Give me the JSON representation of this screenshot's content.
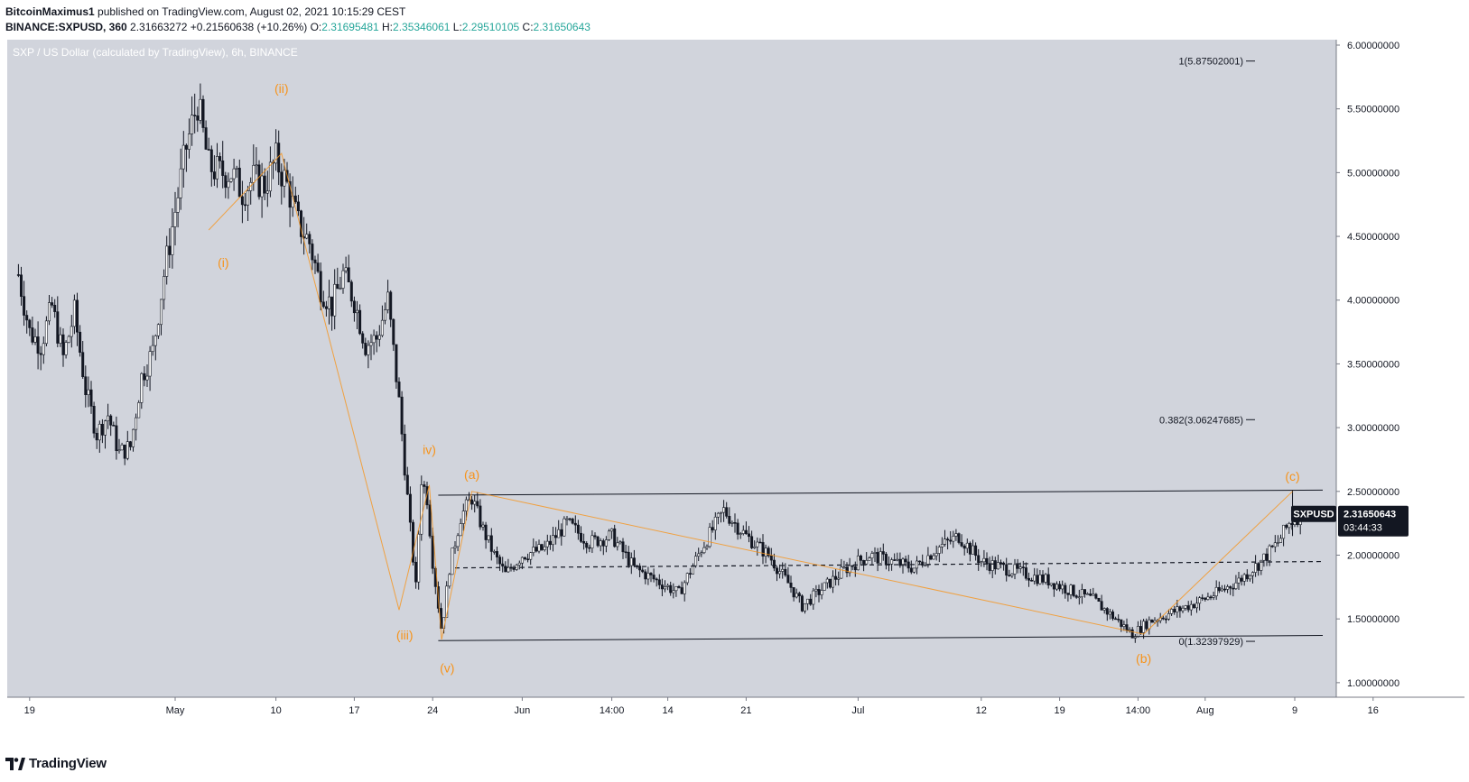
{
  "header": {
    "author": "BitcoinMaximus1",
    "published": "published on TradingView.com, August 02, 2021 10:15:29 CEST",
    "symbol": "BINANCE:SXPUSD, 360",
    "last": "2.31663272",
    "change": "+0.21560638 (+10.26%)",
    "o_label": "O:",
    "o_value": "2.31695481",
    "h_label": "H:",
    "h_value": "2.35346061",
    "l_label": "L:",
    "l_value": "2.29510105",
    "c_label": "C:",
    "c_value": "2.31650643"
  },
  "footer": {
    "brand": "TradingView"
  },
  "colors": {
    "background": "#d1d4dc",
    "wave": "#f7931a",
    "candle": "#131722",
    "channel": "#131722"
  },
  "chart_data": {
    "type": "candlestick",
    "title": "SXP / US Dollar (calculated by TradingView), 6h, BINANCE",
    "currency": "USD",
    "ylim": [
      0.9,
      6.0
    ],
    "y_ticks": [
      "6.00000000",
      "5.50000000",
      "5.00000000",
      "4.50000000",
      "4.00000000",
      "3.50000000",
      "3.00000000",
      "2.50000000",
      "2.00000000",
      "1.50000000",
      "1.00000000"
    ],
    "x_ticks": [
      "19",
      "May",
      "10",
      "17",
      "24",
      "Jun",
      "14:00",
      "14",
      "21",
      "Jul",
      "12",
      "19",
      "14:00",
      "Aug",
      "9",
      "16"
    ],
    "x_tick_days": [
      -13,
      0,
      9,
      16,
      23,
      31,
      39,
      44,
      51,
      61,
      72,
      79,
      86,
      92,
      100,
      107
    ],
    "last_price": {
      "label": "SXPUSD",
      "value": "2.31650643",
      "countdown": "03:44:33"
    },
    "price_path": [
      [
        -14,
        4.2
      ],
      [
        -13,
        3.75
      ],
      [
        -12,
        3.65
      ],
      [
        -11,
        3.95
      ],
      [
        -10,
        3.55
      ],
      [
        -9,
        3.9
      ],
      [
        -8,
        3.3
      ],
      [
        -7,
        2.95
      ],
      [
        -6,
        3.1
      ],
      [
        -5,
        2.8
      ],
      [
        -4,
        2.85
      ],
      [
        -3,
        3.4
      ],
      [
        -2,
        3.6
      ],
      [
        -1,
        4.2
      ],
      [
        0,
        4.7
      ],
      [
        1,
        5.2
      ],
      [
        2,
        5.55
      ],
      [
        3,
        5.05
      ],
      [
        4,
        5.0
      ],
      [
        5,
        5.0
      ],
      [
        6,
        4.85
      ],
      [
        7,
        4.95
      ],
      [
        8,
        4.9
      ],
      [
        9,
        5.1
      ],
      [
        10,
        4.9
      ],
      [
        11,
        4.6
      ],
      [
        12,
        4.45
      ],
      [
        13,
        4.1
      ],
      [
        14,
        3.95
      ],
      [
        15,
        4.2
      ],
      [
        16,
        4.0
      ],
      [
        17,
        3.65
      ],
      [
        18,
        3.7
      ],
      [
        19,
        4.0
      ],
      [
        20,
        3.2
      ],
      [
        21,
        2.2
      ],
      [
        21.5,
        1.75
      ],
      [
        22,
        2.6
      ],
      [
        22.5,
        2.45
      ],
      [
        23,
        1.95
      ],
      [
        23.8,
        1.4
      ],
      [
        24.5,
        1.9
      ],
      [
        25.5,
        2.3
      ],
      [
        26.5,
        2.45
      ],
      [
        27.5,
        2.2
      ],
      [
        28.5,
        2.0
      ],
      [
        29.5,
        1.85
      ],
      [
        31,
        2.0
      ],
      [
        33,
        2.05
      ],
      [
        35,
        2.25
      ],
      [
        37,
        2.1
      ],
      [
        39,
        2.15
      ],
      [
        41,
        1.9
      ],
      [
        43,
        1.8
      ],
      [
        45,
        1.7
      ],
      [
        47,
        2.05
      ],
      [
        49,
        2.35
      ],
      [
        51,
        2.15
      ],
      [
        53,
        2.0
      ],
      [
        55,
        1.75
      ],
      [
        56,
        1.6
      ],
      [
        58,
        1.75
      ],
      [
        60,
        1.9
      ],
      [
        62,
        2.0
      ],
      [
        64,
        1.95
      ],
      [
        66,
        1.9
      ],
      [
        68,
        2.05
      ],
      [
        70,
        2.15
      ],
      [
        72,
        1.95
      ],
      [
        74,
        1.9
      ],
      [
        76,
        1.85
      ],
      [
        78,
        1.8
      ],
      [
        80,
        1.72
      ],
      [
        82,
        1.65
      ],
      [
        84,
        1.5
      ],
      [
        85.5,
        1.38
      ],
      [
        87,
        1.48
      ],
      [
        89,
        1.55
      ],
      [
        91,
        1.62
      ],
      [
        93,
        1.7
      ],
      [
        95,
        1.8
      ],
      [
        97,
        1.95
      ],
      [
        98.5,
        2.1
      ],
      [
        99.5,
        2.25
      ],
      [
        100.5,
        2.32
      ]
    ],
    "wave_labels": [
      {
        "text": "(ii)",
        "day": 9.5,
        "price": 5.4
      },
      {
        "text": "(i)",
        "day": 4.3,
        "price": 4.5
      },
      {
        "text": "(iii)",
        "day": 20.5,
        "price": 1.55
      },
      {
        "text": "iv)",
        "day": 22.7,
        "price": 2.75
      },
      {
        "text": "(v)",
        "day": 24.3,
        "price": 1.32
      },
      {
        "text": "(a)",
        "day": 26.5,
        "price": 2.5
      },
      {
        "text": "(b)",
        "day": 86.5,
        "price": 1.38
      },
      {
        "text": "(c)",
        "day": 99.8,
        "price": 2.5
      }
    ],
    "wave_path": [
      [
        3.0,
        4.55
      ],
      [
        9.5,
        5.15
      ],
      [
        20.0,
        1.57
      ],
      [
        22.7,
        2.55
      ],
      [
        23.8,
        1.34
      ]
    ],
    "abc_path": [
      [
        23.8,
        1.34
      ],
      [
        26.5,
        2.5
      ],
      [
        86.5,
        1.38
      ],
      [
        99.8,
        2.5
      ]
    ],
    "channel_top": [
      [
        23.5,
        2.47
      ],
      [
        102.5,
        2.51
      ]
    ],
    "channel_bottom": [
      [
        23.5,
        1.33
      ],
      [
        102.5,
        1.37
      ]
    ],
    "midline": [
      [
        25,
        1.9
      ],
      [
        102.5,
        1.95
      ]
    ],
    "fib_levels": [
      {
        "label": "1(5.87502001)",
        "value": 5.875
      },
      {
        "label": "0.382(3.06247685)",
        "value": 3.0625
      },
      {
        "label": "0(1.32397929)",
        "value": 1.324
      }
    ]
  }
}
